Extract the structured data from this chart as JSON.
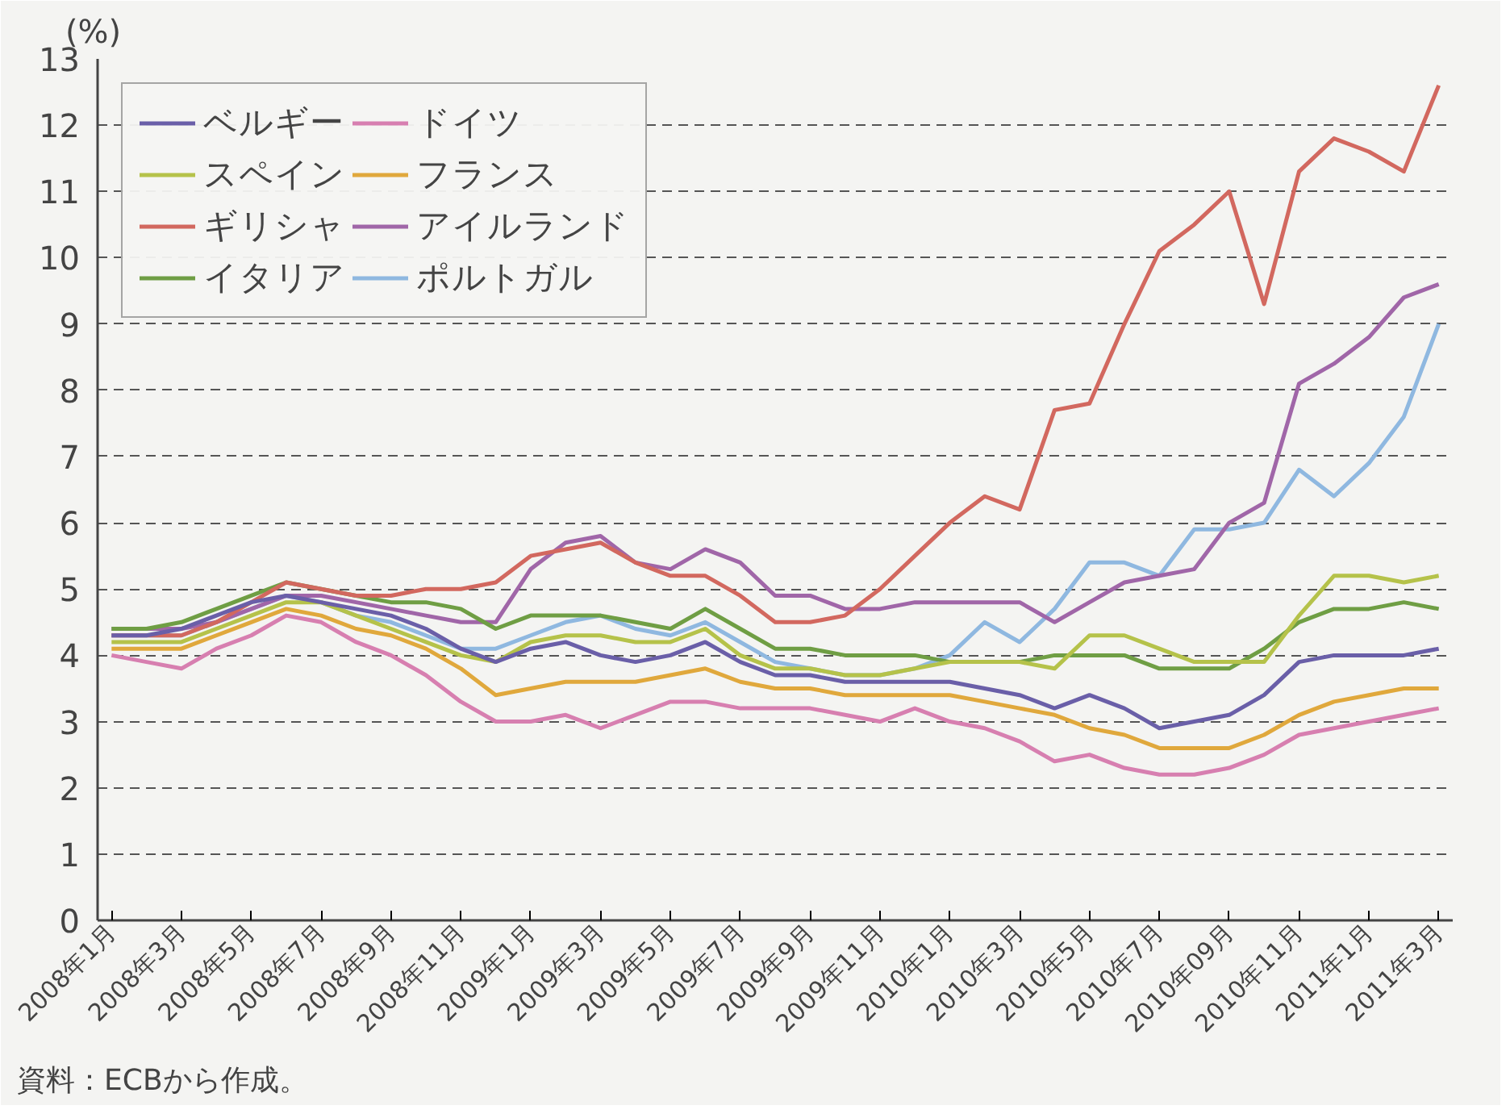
{
  "chart_data": {
    "type": "line",
    "ylabel": "(%)",
    "annotations": [
      "資料：ECBから作成。"
    ],
    "categories": [
      "2008年1月",
      null,
      "2008年3月",
      null,
      "2008年5月",
      null,
      "2008年7月",
      null,
      "2008年9月",
      null,
      "2008年11月",
      null,
      "2009年1月",
      null,
      "2009年3月",
      null,
      "2009年5月",
      null,
      "2009年7月",
      null,
      "2009年9月",
      null,
      "2009年11月",
      null,
      "2010年1月",
      null,
      "2010年3月",
      null,
      "2010年5月",
      null,
      "2010年7月",
      null,
      "2010年09月",
      null,
      "2010年11月",
      null,
      "2011年1月",
      null,
      "2011年3月"
    ],
    "ylim": [
      0,
      13
    ],
    "yticks": [
      0,
      1,
      2,
      3,
      4,
      5,
      6,
      7,
      8,
      9,
      10,
      11,
      12,
      13
    ],
    "grid": "y",
    "legend": "top left",
    "line_style": "solid",
    "marker": "none",
    "series": [
      {
        "name": "ベルギー",
        "color": "#6a5fa8",
        "values": [
          4.3,
          4.3,
          4.4,
          4.6,
          4.8,
          4.9,
          4.8,
          4.7,
          4.6,
          4.4,
          4.1,
          3.9,
          4.1,
          4.2,
          4.0,
          3.9,
          4.0,
          4.2,
          3.9,
          3.7,
          3.7,
          3.6,
          3.6,
          3.6,
          3.6,
          3.5,
          3.4,
          3.2,
          3.4,
          3.2,
          2.9,
          3.0,
          3.1,
          3.4,
          3.9,
          4.0,
          4.0,
          4.0,
          4.1
        ]
      },
      {
        "name": "スペイン",
        "color": "#b5c24a",
        "values": [
          4.2,
          4.2,
          4.2,
          4.4,
          4.6,
          4.8,
          4.8,
          4.6,
          4.4,
          4.2,
          4.0,
          3.9,
          4.2,
          4.3,
          4.3,
          4.2,
          4.2,
          4.4,
          4.0,
          3.8,
          3.8,
          3.7,
          3.7,
          3.8,
          3.9,
          3.9,
          3.9,
          3.8,
          4.3,
          4.3,
          4.1,
          3.9,
          3.9,
          3.9,
          4.6,
          5.2,
          5.2,
          5.1,
          5.2
        ]
      },
      {
        "name": "ギリシャ",
        "color": "#d2685f",
        "values": [
          4.3,
          4.3,
          4.3,
          4.5,
          4.8,
          5.1,
          5.0,
          4.9,
          4.9,
          5.0,
          5.0,
          5.1,
          5.5,
          5.6,
          5.7,
          5.4,
          5.2,
          5.2,
          4.9,
          4.5,
          4.5,
          4.6,
          5.0,
          5.5,
          6.0,
          6.4,
          6.2,
          7.7,
          7.8,
          9.0,
          10.1,
          10.5,
          11.0,
          9.3,
          11.3,
          11.8,
          11.6,
          11.3,
          12.6
        ]
      },
      {
        "name": "イタリア",
        "color": "#6f9e44",
        "values": [
          4.4,
          4.4,
          4.5,
          4.7,
          4.9,
          5.1,
          5.0,
          4.9,
          4.8,
          4.8,
          4.7,
          4.4,
          4.6,
          4.6,
          4.6,
          4.5,
          4.4,
          4.7,
          4.4,
          4.1,
          4.1,
          4.0,
          4.0,
          4.0,
          3.9,
          3.9,
          3.9,
          4.0,
          4.0,
          4.0,
          3.8,
          3.8,
          3.8,
          4.1,
          4.5,
          4.7,
          4.7,
          4.8,
          4.7
        ]
      },
      {
        "name": "ドイツ",
        "color": "#d77fb0",
        "values": [
          4.0,
          3.9,
          3.8,
          4.1,
          4.3,
          4.6,
          4.5,
          4.2,
          4.0,
          3.7,
          3.3,
          3.0,
          3.0,
          3.1,
          2.9,
          3.1,
          3.3,
          3.3,
          3.2,
          3.2,
          3.2,
          3.1,
          3.0,
          3.2,
          3.0,
          2.9,
          2.7,
          2.4,
          2.5,
          2.3,
          2.2,
          2.2,
          2.3,
          2.5,
          2.8,
          2.9,
          3.0,
          3.1,
          3.2
        ]
      },
      {
        "name": "フランス",
        "color": "#e0a83c",
        "values": [
          4.1,
          4.1,
          4.1,
          4.3,
          4.5,
          4.7,
          4.6,
          4.4,
          4.3,
          4.1,
          3.8,
          3.4,
          3.5,
          3.6,
          3.6,
          3.6,
          3.7,
          3.8,
          3.6,
          3.5,
          3.5,
          3.4,
          3.4,
          3.4,
          3.4,
          3.3,
          3.2,
          3.1,
          2.9,
          2.8,
          2.6,
          2.6,
          2.6,
          2.8,
          3.1,
          3.3,
          3.4,
          3.5,
          3.5
        ]
      },
      {
        "name": "アイルランド",
        "color": "#a066a8",
        "values": [
          4.4,
          4.4,
          4.4,
          4.5,
          4.7,
          4.9,
          4.9,
          4.8,
          4.7,
          4.6,
          4.5,
          4.5,
          5.3,
          5.7,
          5.8,
          5.4,
          5.3,
          5.6,
          5.4,
          4.9,
          4.9,
          4.7,
          4.7,
          4.8,
          4.8,
          4.8,
          4.8,
          4.5,
          4.8,
          5.1,
          5.2,
          5.3,
          6.0,
          6.3,
          8.1,
          8.4,
          8.8,
          9.4,
          9.6
        ]
      },
      {
        "name": "ポルトガル",
        "color": "#8fb8e0",
        "values": [
          4.3,
          4.3,
          4.3,
          4.5,
          4.7,
          4.9,
          4.8,
          4.6,
          4.5,
          4.3,
          4.1,
          4.1,
          4.3,
          4.5,
          4.6,
          4.4,
          4.3,
          4.5,
          4.2,
          3.9,
          3.8,
          3.7,
          3.7,
          3.8,
          4.0,
          4.5,
          4.2,
          4.7,
          5.4,
          5.4,
          5.2,
          5.9,
          5.9,
          6.0,
          6.8,
          6.4,
          6.9,
          7.6,
          9.0
        ]
      }
    ]
  }
}
